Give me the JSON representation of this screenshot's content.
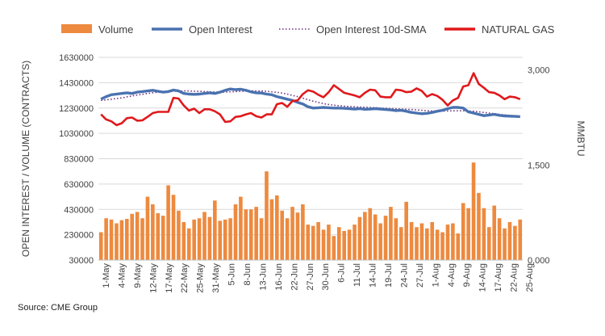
{
  "source_text": "Source: CME Group",
  "chart_data": {
    "type": "bar",
    "series": [
      {
        "name": "Volume",
        "type": "bar",
        "axis": "left",
        "color": "#ED8A3F"
      },
      {
        "name": "Open Interest",
        "type": "line",
        "axis": "left",
        "color": "#4A72B0"
      },
      {
        "name": "Open Interest 10d-SMA",
        "type": "line",
        "axis": "left",
        "style": "dotted",
        "color": "#6B2E7E"
      },
      {
        "name": "NATURAL GAS",
        "type": "line",
        "axis": "right",
        "color": "#E0191C"
      }
    ],
    "y_left": {
      "label": "OPEN INTEREST / VOLUME (CONTRACTS)",
      "ylim": [
        30000,
        1630000
      ],
      "ticks": [
        "30000",
        "230000",
        "430000",
        "630000",
        "830000",
        "1030000",
        "1230000",
        "1430000",
        "1630000"
      ]
    },
    "y_right": {
      "label": "MMBTU",
      "ylim": [
        0,
        3200
      ],
      "ticks": [
        "0,000",
        "1,500",
        "3,000"
      ]
    },
    "x_ticks": [
      "1-May",
      "4-May",
      "9-May",
      "12-May",
      "17-May",
      "22-May",
      "25-May",
      "31-May",
      "5-Jun",
      "8-Jun",
      "13-Jun",
      "16-Jun",
      "22-Jun",
      "27-Jun",
      "30-Jun",
      "6-Jul",
      "11-Jul",
      "14-Jul",
      "19-Jul",
      "24-Jul",
      "27-Jul",
      "1-Aug",
      "4-Aug",
      "9-Aug",
      "14-Aug",
      "17-Aug",
      "22-Aug",
      "25-Aug"
    ],
    "volume": [
      250000,
      360000,
      350000,
      320000,
      345000,
      355000,
      395000,
      410000,
      360000,
      530000,
      470000,
      400000,
      380000,
      620000,
      545000,
      420000,
      330000,
      280000,
      350000,
      360000,
      410000,
      370000,
      500000,
      340000,
      350000,
      360000,
      470000,
      530000,
      430000,
      430000,
      450000,
      360000,
      730000,
      510000,
      540000,
      420000,
      360000,
      450000,
      405000,
      470000,
      310000,
      300000,
      330000,
      270000,
      310000,
      220000,
      290000,
      260000,
      270000,
      310000,
      370000,
      410000,
      440000,
      390000,
      320000,
      380000,
      450000,
      360000,
      290000,
      490000,
      330000,
      290000,
      320000,
      280000,
      330000,
      270000,
      250000,
      310000,
      320000,
      240000,
      480000,
      440000,
      800000,
      560000,
      440000,
      290000,
      460000,
      360000,
      280000,
      330000,
      300000,
      350000
    ],
    "open_interest": [
      1300000,
      1320000,
      1335000,
      1340000,
      1345000,
      1350000,
      1345000,
      1355000,
      1360000,
      1365000,
      1370000,
      1362000,
      1355000,
      1360000,
      1372000,
      1365000,
      1345000,
      1340000,
      1338000,
      1340000,
      1345000,
      1350000,
      1345000,
      1355000,
      1370000,
      1380000,
      1375000,
      1378000,
      1370000,
      1358000,
      1350000,
      1348000,
      1340000,
      1335000,
      1320000,
      1310000,
      1300000,
      1290000,
      1275000,
      1262000,
      1240000,
      1230000,
      1232000,
      1235000,
      1232000,
      1230000,
      1230000,
      1228000,
      1225000,
      1222000,
      1225000,
      1220000,
      1222000,
      1225000,
      1222000,
      1218000,
      1215000,
      1210000,
      1212000,
      1205000,
      1195000,
      1190000,
      1185000,
      1188000,
      1195000,
      1205000,
      1212000,
      1225000,
      1235000,
      1235000,
      1230000,
      1200000,
      1190000,
      1180000,
      1170000,
      1175000,
      1180000,
      1172000,
      1168000,
      1166000,
      1164000,
      1162000
    ],
    "open_interest_sma": [
      1290000,
      1295000,
      1300000,
      1305000,
      1310000,
      1318000,
      1325000,
      1332000,
      1338000,
      1345000,
      1350000,
      1355000,
      1358000,
      1360000,
      1362000,
      1364000,
      1365000,
      1365000,
      1363000,
      1362000,
      1360000,
      1358000,
      1356000,
      1355000,
      1356000,
      1358000,
      1360000,
      1362000,
      1364000,
      1365000,
      1365000,
      1364000,
      1362000,
      1358000,
      1354000,
      1348000,
      1340000,
      1330000,
      1320000,
      1308000,
      1296000,
      1284000,
      1274000,
      1265000,
      1258000,
      1252000,
      1248000,
      1245000,
      1242000,
      1240000,
      1238000,
      1236000,
      1234000,
      1232000,
      1230000,
      1228000,
      1226000,
      1224000,
      1222000,
      1220000,
      1218000,
      1215000,
      1212000,
      1209000,
      1207000,
      1206000,
      1206000,
      1207000,
      1208000,
      1208000,
      1208000,
      1207000,
      1205000,
      1200000,
      1195000,
      1190000,
      1185000,
      1180000,
      1176000,
      1172000,
      1168000,
      1165000
    ],
    "natural_gas": [
      2300,
      2220,
      2190,
      2130,
      2160,
      2240,
      2250,
      2200,
      2205,
      2260,
      2320,
      2340,
      2340,
      2340,
      2560,
      2550,
      2440,
      2360,
      2390,
      2320,
      2380,
      2380,
      2350,
      2300,
      2180,
      2190,
      2260,
      2270,
      2300,
      2320,
      2270,
      2250,
      2300,
      2300,
      2460,
      2480,
      2420,
      2510,
      2520,
      2620,
      2680,
      2660,
      2610,
      2570,
      2650,
      2760,
      2700,
      2640,
      2620,
      2600,
      2570,
      2640,
      2690,
      2680,
      2580,
      2570,
      2570,
      2690,
      2680,
      2650,
      2660,
      2710,
      2670,
      2580,
      2620,
      2590,
      2530,
      2440,
      2520,
      2560,
      2740,
      2760,
      2950,
      2780,
      2720,
      2650,
      2640,
      2600,
      2540,
      2580,
      2570,
      2540
    ]
  }
}
